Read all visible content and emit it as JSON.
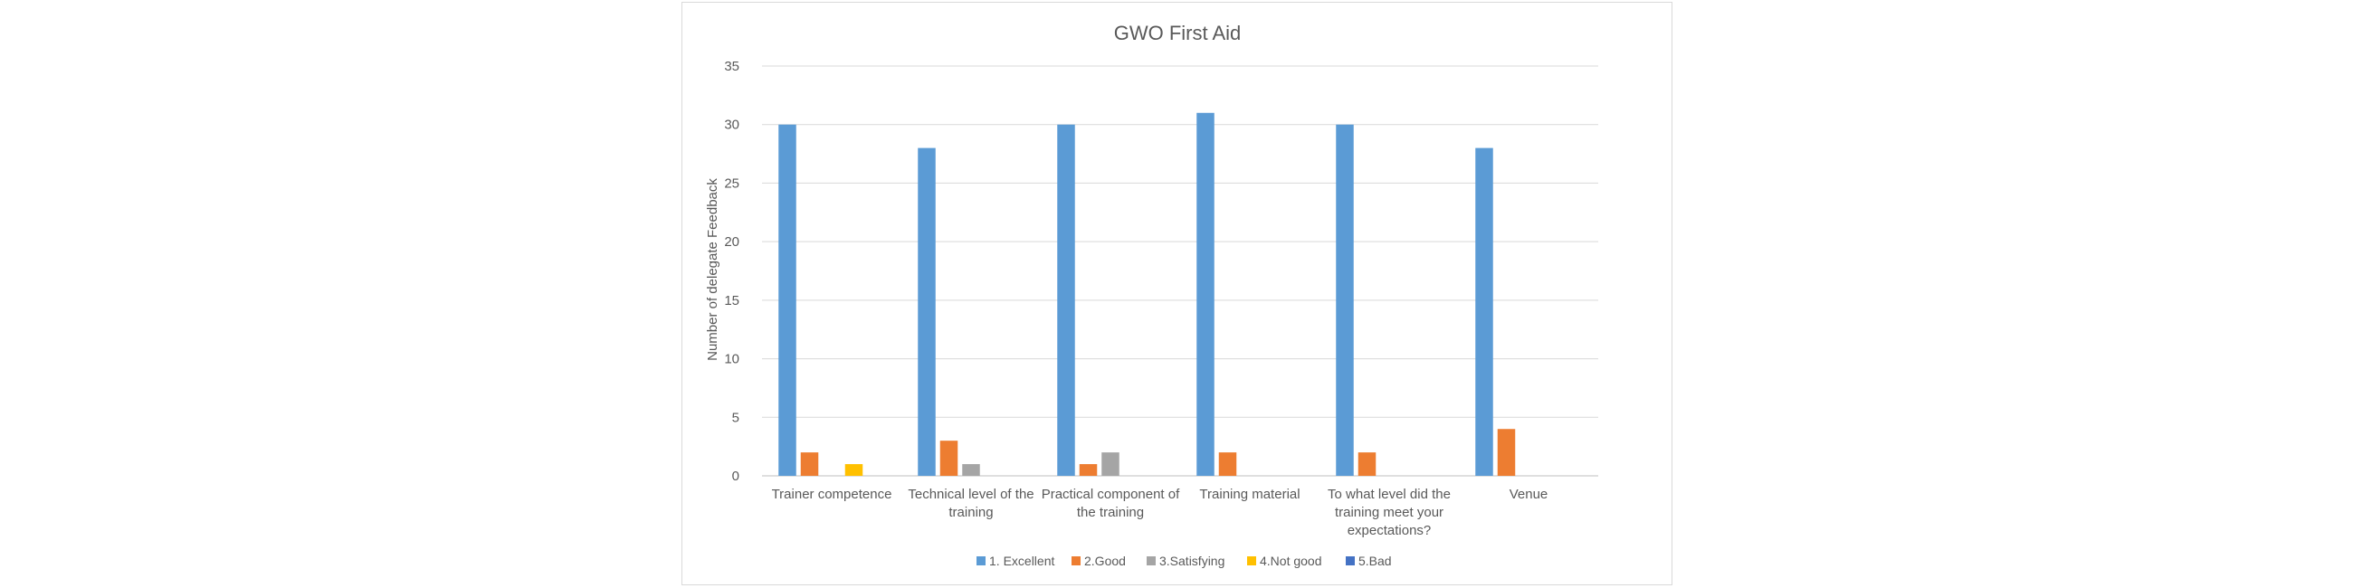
{
  "chart_data": {
    "type": "bar",
    "title": "GWO First Aid",
    "xlabel": "",
    "ylabel": "Number of delegate Feedback",
    "ylim": [
      0,
      35
    ],
    "yticks": [
      0,
      5,
      10,
      15,
      20,
      25,
      30,
      35
    ],
    "grid": true,
    "legend_position": "bottom",
    "categories": [
      [
        "Trainer competence"
      ],
      [
        "Technical level of the",
        "training"
      ],
      [
        "Practical component of",
        "the training"
      ],
      [
        "Training material"
      ],
      [
        "To what level did the",
        "training meet your",
        "expectations?"
      ],
      [
        "Venue"
      ]
    ],
    "series": [
      {
        "name": "1. Excellent",
        "color": "#5b9bd5",
        "values": [
          30,
          28,
          30,
          31,
          30,
          28
        ]
      },
      {
        "name": "2.Good",
        "color": "#ed7d31",
        "values": [
          2,
          3,
          1,
          2,
          2,
          4
        ]
      },
      {
        "name": "3.Satisfying",
        "color": "#a5a5a5",
        "values": [
          0,
          1,
          2,
          0,
          0,
          0
        ]
      },
      {
        "name": "4.Not good",
        "color": "#ffc000",
        "values": [
          1,
          0,
          0,
          0,
          0,
          0
        ]
      },
      {
        "name": "5.Bad",
        "color": "#4472c4",
        "values": [
          0,
          0,
          0,
          0,
          0,
          0
        ]
      }
    ]
  }
}
